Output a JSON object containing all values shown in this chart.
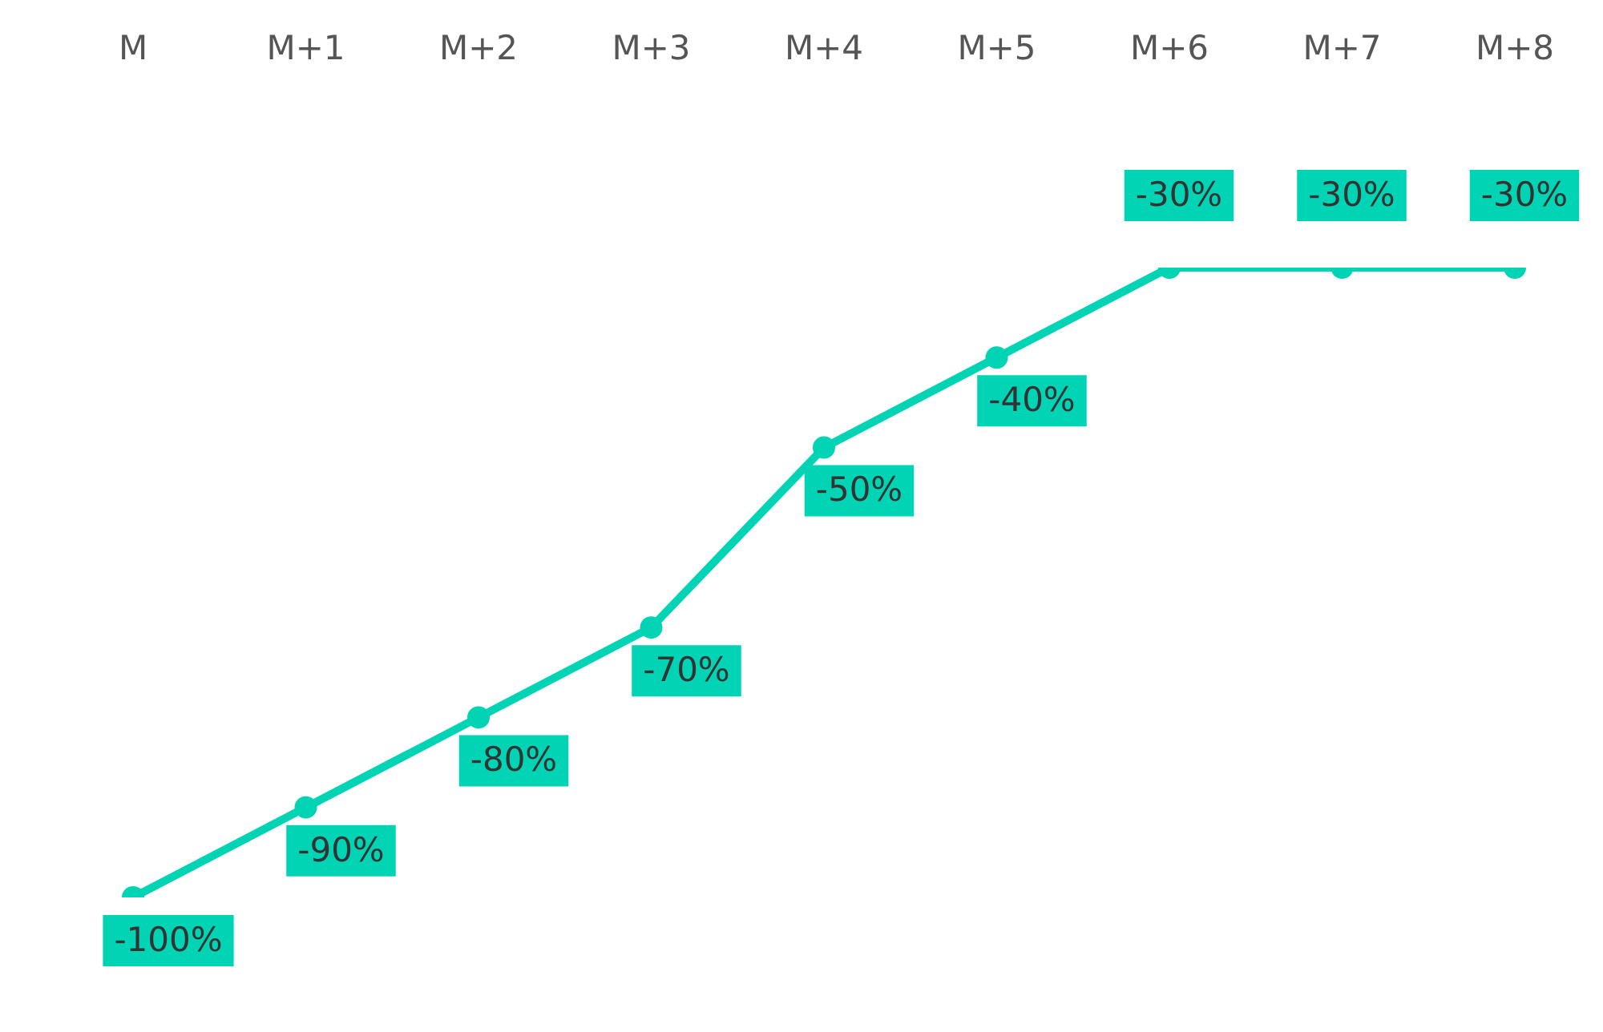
{
  "chart_data": {
    "type": "line",
    "categories": [
      "M",
      "M+1",
      "M+2",
      "M+3",
      "M+4",
      "M+5",
      "M+6",
      "M+7",
      "M+8"
    ],
    "series": [
      {
        "color": "#00d4b4",
        "values": [
          -100,
          -90,
          -80,
          -70,
          -50,
          -40,
          -30,
          -30,
          -30
        ],
        "value_labels": [
          "-100%",
          "-90%",
          "-80%",
          "-70%",
          "-50%",
          "-40%",
          "-30%",
          "-30%",
          "-30%"
        ]
      }
    ],
    "marker": "circle",
    "legend": false,
    "grid": false,
    "tick_labels": "x"
  }
}
